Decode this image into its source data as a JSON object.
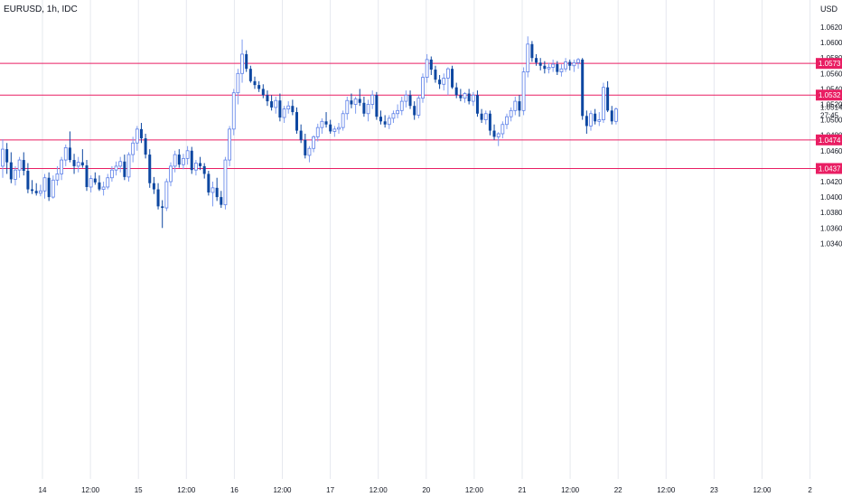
{
  "header": {
    "title": "EURUSD, 1h, IDC",
    "currency": "USD"
  },
  "colors": {
    "up": "#2962ff",
    "down": "#0d47a1",
    "grid": "#e6e8ee",
    "hline": "#e91e63",
    "axis_text": "#131722"
  },
  "chart_data": {
    "type": "candlestick",
    "title": "EURUSD, 1h, IDC",
    "ylabel": "USD",
    "ylim": [
      1.0333,
      1.0634
    ],
    "y_ticks": [
      "1.0620",
      "1.0600",
      "1.0580",
      "1.0560",
      "1.0540",
      "1.0520",
      "1.0500",
      "1.0480",
      "1.0460",
      "1.0440",
      "1.0420",
      "1.0400",
      "1.0380",
      "1.0360",
      "1.0340"
    ],
    "x_tick_labels": [
      "14",
      "12:00",
      "15",
      "12:00",
      "16",
      "12:00",
      "17",
      "12:00",
      "20",
      "12:00",
      "21",
      "12:00",
      "22",
      "12:00",
      "23",
      "12:00",
      "2"
    ],
    "current_price": {
      "label": "1.0514",
      "countdown": "27:45",
      "value": 1.0514
    },
    "horizontal_lines": [
      {
        "value": 1.0573,
        "label": "1.0573"
      },
      {
        "value": 1.0532,
        "label": "1.0532"
      },
      {
        "value": 1.0474,
        "label": "1.0474"
      },
      {
        "value": 1.0437,
        "label": "1.0437"
      }
    ],
    "candles": [
      [
        1.044,
        1.0475,
        1.0425,
        1.0462
      ],
      [
        1.0462,
        1.047,
        1.043,
        1.0445
      ],
      [
        1.0445,
        1.0458,
        1.0418,
        1.0423
      ],
      [
        1.0423,
        1.044,
        1.0415,
        1.0435
      ],
      [
        1.0435,
        1.0452,
        1.0425,
        1.0448
      ],
      [
        1.0448,
        1.0458,
        1.0428,
        1.0434
      ],
      [
        1.0434,
        1.0444,
        1.0405,
        1.041
      ],
      [
        1.041,
        1.0422,
        1.0404,
        1.0408
      ],
      [
        1.0408,
        1.0418,
        1.0402,
        1.0405
      ],
      [
        1.0405,
        1.0416,
        1.0401,
        1.0408
      ],
      [
        1.0408,
        1.043,
        1.0398,
        1.0425
      ],
      [
        1.0425,
        1.0432,
        1.0395,
        1.04
      ],
      [
        1.04,
        1.0428,
        1.0398,
        1.0422
      ],
      [
        1.0422,
        1.044,
        1.0415,
        1.043
      ],
      [
        1.043,
        1.0452,
        1.0422,
        1.0448
      ],
      [
        1.0448,
        1.0468,
        1.044,
        1.0464
      ],
      [
        1.0464,
        1.0485,
        1.0445,
        1.0448
      ],
      [
        1.0448,
        1.0456,
        1.043,
        1.044
      ],
      [
        1.044,
        1.0452,
        1.0432,
        1.0445
      ],
      [
        1.0445,
        1.0462,
        1.0438,
        1.0441
      ],
      [
        1.0441,
        1.0448,
        1.0408,
        1.0413
      ],
      [
        1.0413,
        1.0428,
        1.0406,
        1.0424
      ],
      [
        1.0424,
        1.0432,
        1.0416,
        1.0419
      ],
      [
        1.0419,
        1.0428,
        1.0408,
        1.041
      ],
      [
        1.041,
        1.042,
        1.0402,
        1.0413
      ],
      [
        1.0413,
        1.043,
        1.041,
        1.0425
      ],
      [
        1.0425,
        1.044,
        1.042,
        1.0435
      ],
      [
        1.0435,
        1.0446,
        1.0428,
        1.044
      ],
      [
        1.044,
        1.0452,
        1.0432,
        1.0446
      ],
      [
        1.0446,
        1.0455,
        1.0422,
        1.0426
      ],
      [
        1.0426,
        1.0458,
        1.042,
        1.0455
      ],
      [
        1.0455,
        1.0478,
        1.0445,
        1.047
      ],
      [
        1.047,
        1.0492,
        1.046,
        1.0488
      ],
      [
        1.0488,
        1.0496,
        1.047,
        1.0476
      ],
      [
        1.0476,
        1.0482,
        1.045,
        1.0455
      ],
      [
        1.0455,
        1.0462,
        1.0412,
        1.0418
      ],
      [
        1.0418,
        1.0426,
        1.0404,
        1.041
      ],
      [
        1.041,
        1.0418,
        1.0384,
        1.0388
      ],
      [
        1.0388,
        1.0396,
        1.036,
        1.0386
      ],
      [
        1.0386,
        1.0424,
        1.0382,
        1.042
      ],
      [
        1.042,
        1.0445,
        1.0414,
        1.044
      ],
      [
        1.044,
        1.046,
        1.0432,
        1.0455
      ],
      [
        1.0455,
        1.0462,
        1.0438,
        1.0442
      ],
      [
        1.0442,
        1.0456,
        1.0436,
        1.045
      ],
      [
        1.045,
        1.0466,
        1.0442,
        1.046
      ],
      [
        1.046,
        1.0465,
        1.043,
        1.0435
      ],
      [
        1.0435,
        1.0448,
        1.0428,
        1.0444
      ],
      [
        1.0444,
        1.0452,
        1.0435,
        1.044
      ],
      [
        1.044,
        1.0444,
        1.0424,
        1.043
      ],
      [
        1.043,
        1.0434,
        1.0402,
        1.0406
      ],
      [
        1.0406,
        1.042,
        1.0388,
        1.0412
      ],
      [
        1.0412,
        1.0425,
        1.0395,
        1.04
      ],
      [
        1.04,
        1.0408,
        1.0386,
        1.039
      ],
      [
        1.039,
        1.0452,
        1.0384,
        1.0448
      ],
      [
        1.0448,
        1.0492,
        1.044,
        1.0488
      ],
      [
        1.0488,
        1.054,
        1.048,
        1.0535
      ],
      [
        1.0535,
        1.0566,
        1.052,
        1.056
      ],
      [
        1.056,
        1.0604,
        1.0548,
        1.0585
      ],
      [
        1.0585,
        1.059,
        1.0562,
        1.0566
      ],
      [
        1.0566,
        1.057,
        1.0548,
        1.055
      ],
      [
        1.055,
        1.0556,
        1.054,
        1.0545
      ],
      [
        1.0545,
        1.055,
        1.0536,
        1.054
      ],
      [
        1.054,
        1.0546,
        1.0528,
        1.0532
      ],
      [
        1.0532,
        1.0538,
        1.0518,
        1.0524
      ],
      [
        1.0524,
        1.0532,
        1.0512,
        1.0516
      ],
      [
        1.0516,
        1.053,
        1.0508,
        1.0525
      ],
      [
        1.0525,
        1.0534,
        1.0498,
        1.0503
      ],
      [
        1.0503,
        1.0518,
        1.0496,
        1.0514
      ],
      [
        1.0514,
        1.0524,
        1.0508,
        1.0518
      ],
      [
        1.0518,
        1.0526,
        1.0506,
        1.051
      ],
      [
        1.051,
        1.0516,
        1.0482,
        1.0486
      ],
      [
        1.0486,
        1.0494,
        1.047,
        1.0474
      ],
      [
        1.0474,
        1.0482,
        1.045,
        1.0454
      ],
      [
        1.0454,
        1.0466,
        1.0445,
        1.0463
      ],
      [
        1.0463,
        1.048,
        1.0458,
        1.0478
      ],
      [
        1.0478,
        1.0495,
        1.0472,
        1.049
      ],
      [
        1.049,
        1.0502,
        1.0482,
        1.0498
      ],
      [
        1.0498,
        1.051,
        1.049,
        1.0494
      ],
      [
        1.0494,
        1.05,
        1.0482,
        1.0485
      ],
      [
        1.0485,
        1.0492,
        1.0478,
        1.0488
      ],
      [
        1.0488,
        1.0496,
        1.0482,
        1.049
      ],
      [
        1.049,
        1.0512,
        1.0486,
        1.0508
      ],
      [
        1.0508,
        1.053,
        1.05,
        1.0525
      ],
      [
        1.0525,
        1.0534,
        1.0515,
        1.052
      ],
      [
        1.052,
        1.053,
        1.0508,
        1.0527
      ],
      [
        1.0527,
        1.054,
        1.0518,
        1.0522
      ],
      [
        1.0522,
        1.053,
        1.0504,
        1.0508
      ],
      [
        1.0508,
        1.0526,
        1.0498,
        1.052
      ],
      [
        1.052,
        1.0538,
        1.0514,
        1.0532
      ],
      [
        1.0532,
        1.0536,
        1.05,
        1.0504
      ],
      [
        1.0504,
        1.0512,
        1.0494,
        1.0498
      ],
      [
        1.0498,
        1.0506,
        1.049,
        1.0494
      ],
      [
        1.0494,
        1.0506,
        1.0488,
        1.0502
      ],
      [
        1.0502,
        1.0512,
        1.0496,
        1.0508
      ],
      [
        1.0508,
        1.052,
        1.0502,
        1.0512
      ],
      [
        1.0512,
        1.053,
        1.0506,
        1.0524
      ],
      [
        1.0524,
        1.0538,
        1.0516,
        1.0532
      ],
      [
        1.0532,
        1.0538,
        1.0514,
        1.0518
      ],
      [
        1.0518,
        1.0524,
        1.05,
        1.0506
      ],
      [
        1.0506,
        1.0532,
        1.0502,
        1.0528
      ],
      [
        1.0528,
        1.056,
        1.0522,
        1.0555
      ],
      [
        1.0555,
        1.0585,
        1.0548,
        1.0578
      ],
      [
        1.0578,
        1.0582,
        1.0558,
        1.0565
      ],
      [
        1.0565,
        1.057,
        1.0548,
        1.0552
      ],
      [
        1.0552,
        1.0558,
        1.054,
        1.0546
      ],
      [
        1.0546,
        1.056,
        1.0538,
        1.0554
      ],
      [
        1.0554,
        1.0568,
        1.0532,
        1.0566
      ],
      [
        1.0566,
        1.057,
        1.054,
        1.0542
      ],
      [
        1.0542,
        1.0548,
        1.0528,
        1.0532
      ],
      [
        1.0532,
        1.054,
        1.0524,
        1.0528
      ],
      [
        1.0528,
        1.0536,
        1.0522,
        1.0534
      ],
      [
        1.0534,
        1.054,
        1.052,
        1.0524
      ],
      [
        1.0524,
        1.0536,
        1.0518,
        1.0532
      ],
      [
        1.0532,
        1.0538,
        1.0504,
        1.0508
      ],
      [
        1.0508,
        1.0514,
        1.0496,
        1.05
      ],
      [
        1.05,
        1.0512,
        1.0494,
        1.0508
      ],
      [
        1.0508,
        1.0512,
        1.048,
        1.0486
      ],
      [
        1.0486,
        1.0494,
        1.0474,
        1.0478
      ],
      [
        1.0478,
        1.0484,
        1.0466,
        1.0482
      ],
      [
        1.0482,
        1.0498,
        1.0476,
        1.0494
      ],
      [
        1.0494,
        1.0508,
        1.0488,
        1.0504
      ],
      [
        1.0504,
        1.0516,
        1.0498,
        1.0512
      ],
      [
        1.0512,
        1.053,
        1.0506,
        1.0524
      ],
      [
        1.0524,
        1.0532,
        1.0504,
        1.0512
      ],
      [
        1.0512,
        1.0568,
        1.0506,
        1.0562
      ],
      [
        1.0562,
        1.0608,
        1.0555,
        1.0598
      ],
      [
        1.0598,
        1.0602,
        1.0575,
        1.058
      ],
      [
        1.058,
        1.0585,
        1.057,
        1.0574
      ],
      [
        1.0574,
        1.058,
        1.0564,
        1.057
      ],
      [
        1.057,
        1.0576,
        1.056,
        1.0566
      ],
      [
        1.0566,
        1.0574,
        1.056,
        1.0568
      ],
      [
        1.0568,
        1.0578,
        1.0562,
        1.0572
      ],
      [
        1.0572,
        1.0576,
        1.0558,
        1.0562
      ],
      [
        1.0562,
        1.0572,
        1.0556,
        1.0566
      ],
      [
        1.0566,
        1.058,
        1.0562,
        1.0575
      ],
      [
        1.0575,
        1.0578,
        1.0564,
        1.057
      ],
      [
        1.057,
        1.0578,
        1.0562,
        1.0574
      ],
      [
        1.0574,
        1.058,
        1.0566,
        1.0578
      ],
      [
        1.0578,
        1.058,
        1.05,
        1.0505
      ],
      [
        1.0505,
        1.0512,
        1.0482,
        1.0492
      ],
      [
        1.0492,
        1.0512,
        1.0486,
        1.0508
      ],
      [
        1.0508,
        1.0514,
        1.0494,
        1.0498
      ],
      [
        1.0498,
        1.051,
        1.0492,
        1.05
      ],
      [
        1.05,
        1.0548,
        1.0496,
        1.0542
      ],
      [
        1.0542,
        1.055,
        1.051,
        1.0512
      ],
      [
        1.0512,
        1.0518,
        1.0494,
        1.0498
      ],
      [
        1.0498,
        1.0516,
        1.0494,
        1.0514
      ]
    ]
  }
}
